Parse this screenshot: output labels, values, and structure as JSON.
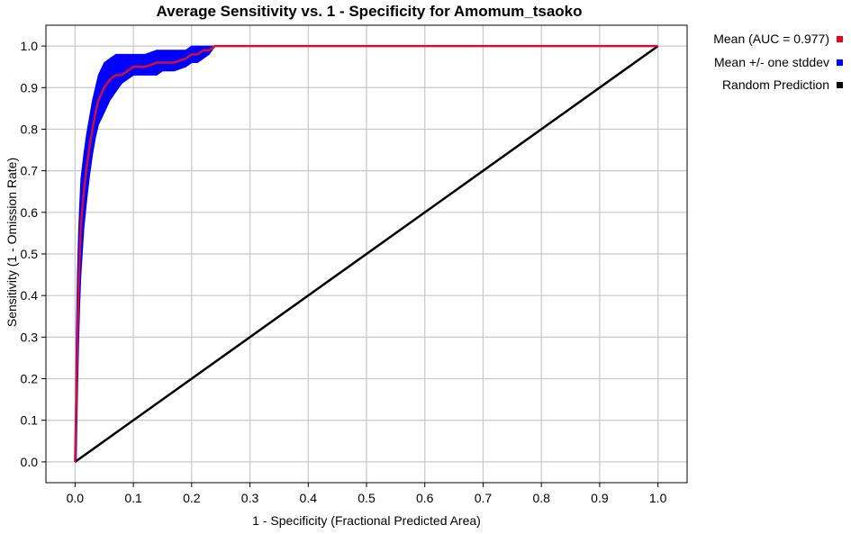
{
  "chart_data": {
    "type": "line",
    "title": "Average Sensitivity vs. 1 - Specificity for Amomum_tsaoko",
    "xlabel": "1 - Specificity (Fractional Predicted Area)",
    "ylabel": "Sensitivity (1 - Omission Rate)",
    "xlim": [
      -0.05,
      1.05
    ],
    "ylim": [
      -0.05,
      1.05
    ],
    "x_ticks": [
      "0.0",
      "0.1",
      "0.2",
      "0.3",
      "0.4",
      "0.5",
      "0.6",
      "0.7",
      "0.8",
      "0.9",
      "1.0"
    ],
    "y_ticks": [
      "0.0",
      "0.1",
      "0.2",
      "0.3",
      "0.4",
      "0.5",
      "0.6",
      "0.7",
      "0.8",
      "0.9",
      "1.0"
    ],
    "grid": true,
    "legend_position": "right",
    "legend": [
      {
        "label": "Mean (AUC = 0.977)",
        "color": "#e8001c"
      },
      {
        "label": "Mean +/- one stddev",
        "color": "#0000ff"
      },
      {
        "label": "Random Prediction",
        "color": "#000000"
      }
    ],
    "series": [
      {
        "name": "Mean (AUC = 0.977)",
        "color": "#d0103a",
        "x": [
          0.0,
          0.002,
          0.004,
          0.006,
          0.008,
          0.01,
          0.015,
          0.02,
          0.025,
          0.03,
          0.035,
          0.04,
          0.05,
          0.06,
          0.07,
          0.08,
          0.09,
          0.1,
          0.12,
          0.14,
          0.15,
          0.17,
          0.19,
          0.2,
          0.21,
          0.22,
          0.23,
          0.24,
          1.0
        ],
        "y": [
          0.0,
          0.14,
          0.3,
          0.42,
          0.5,
          0.57,
          0.65,
          0.71,
          0.76,
          0.8,
          0.84,
          0.87,
          0.9,
          0.92,
          0.93,
          0.93,
          0.94,
          0.95,
          0.95,
          0.96,
          0.96,
          0.96,
          0.97,
          0.98,
          0.98,
          0.99,
          0.99,
          1.0,
          1.0
        ]
      },
      {
        "name": "Mean +/- one stddev",
        "color": "#0000ff",
        "x": [
          0.0,
          0.002,
          0.004,
          0.006,
          0.008,
          0.01,
          0.015,
          0.02,
          0.025,
          0.03,
          0.035,
          0.04,
          0.05,
          0.06,
          0.07,
          0.08,
          0.09,
          0.1,
          0.12,
          0.14,
          0.15,
          0.17,
          0.19,
          0.2,
          0.21,
          0.22,
          0.23,
          0.24
        ],
        "upper": [
          0.0,
          0.3,
          0.45,
          0.55,
          0.62,
          0.68,
          0.74,
          0.79,
          0.83,
          0.87,
          0.9,
          0.93,
          0.96,
          0.97,
          0.98,
          0.98,
          0.98,
          0.98,
          0.98,
          0.99,
          0.99,
          0.99,
          0.99,
          1.0,
          1.0,
          1.0,
          1.0,
          1.0
        ],
        "lower": [
          0.0,
          0.0,
          0.15,
          0.28,
          0.38,
          0.45,
          0.56,
          0.63,
          0.69,
          0.74,
          0.78,
          0.81,
          0.84,
          0.87,
          0.89,
          0.91,
          0.92,
          0.93,
          0.93,
          0.93,
          0.94,
          0.94,
          0.95,
          0.96,
          0.96,
          0.97,
          0.98,
          1.0
        ]
      },
      {
        "name": "Random Prediction",
        "color": "#000000",
        "x": [
          0.0,
          1.0
        ],
        "y": [
          0.0,
          1.0
        ]
      }
    ]
  }
}
